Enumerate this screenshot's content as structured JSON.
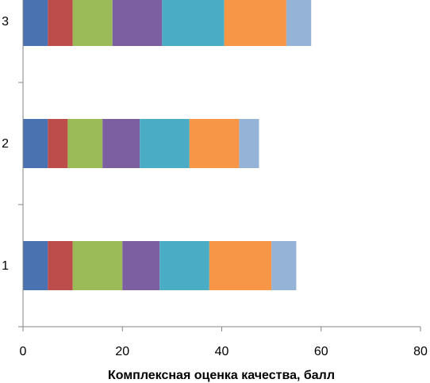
{
  "chart_data": {
    "type": "bar",
    "orientation": "horizontal",
    "stacked": true,
    "categories": [
      "1",
      "2",
      "3"
    ],
    "series": [
      {
        "values": [
          5,
          5,
          5
        ],
        "color": "#4a72b0"
      },
      {
        "values": [
          5,
          4,
          5
        ],
        "color": "#bd4d4b"
      },
      {
        "values": [
          10,
          7,
          8
        ],
        "color": "#9bbb59"
      },
      {
        "values": [
          7.5,
          7.5,
          10
        ],
        "color": "#7c5fa0"
      },
      {
        "values": [
          10,
          10,
          12.5
        ],
        "color": "#4aacc5"
      },
      {
        "values": [
          12.5,
          10,
          12.5
        ],
        "color": "#f79646"
      },
      {
        "values": [
          5,
          4,
          5
        ],
        "color": "#95b3d7"
      }
    ],
    "xlim": [
      0,
      80
    ],
    "xticks": [
      "0",
      "20",
      "40",
      "60",
      "80"
    ],
    "xlabel": "Комплексная оценка качества, балл",
    "ylabel": "",
    "grid": false,
    "legend": "none"
  }
}
